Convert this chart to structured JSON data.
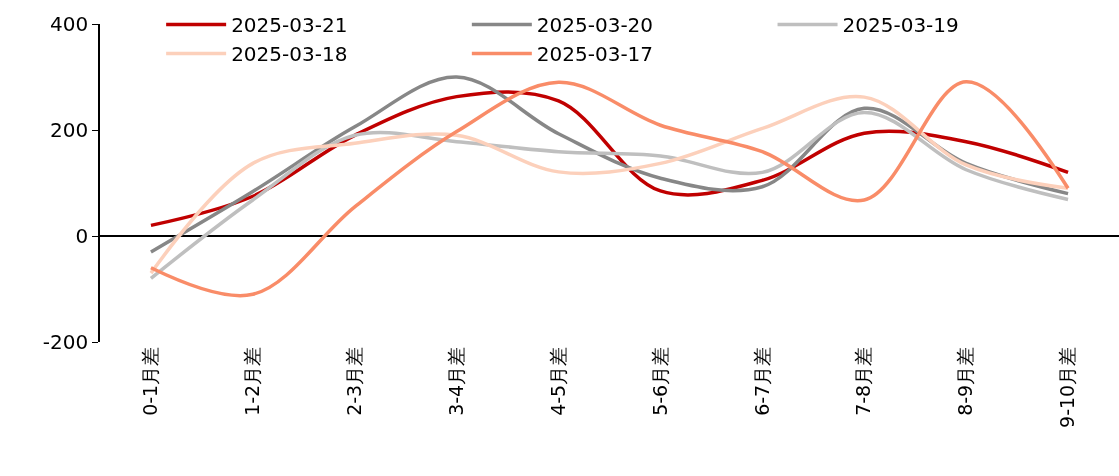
{
  "chart_data": {
    "type": "line",
    "categories": [
      "0-1月差",
      "1-2月差",
      "2-3月差",
      "3-4月差",
      "4-5月差",
      "5-6月差",
      "6-7月差",
      "7-8月差",
      "8-9月差",
      "9-10月差"
    ],
    "series": [
      {
        "name": "2025-03-21",
        "color": "#c00000",
        "values": [
          20,
          75,
          190,
          263,
          255,
          85,
          105,
          194,
          178,
          120
        ]
      },
      {
        "name": "2025-03-20",
        "color": "#878787",
        "values": [
          -30,
          84,
          206,
          300,
          193,
          109,
          93,
          241,
          137,
          80
        ]
      },
      {
        "name": "2025-03-19",
        "color": "#bfbfbf",
        "values": [
          -80,
          68,
          190,
          178,
          159,
          151,
          120,
          233,
          125,
          69
        ]
      },
      {
        "name": "2025-03-18",
        "color": "#fcd0bb",
        "values": [
          -70,
          137,
          175,
          190,
          121,
          137,
          203,
          262,
          134,
          90
        ]
      },
      {
        "name": "2025-03-17",
        "color": "#f98c68",
        "values": [
          -60,
          -110,
          55,
          197,
          290,
          209,
          159,
          68,
          291,
          90
        ]
      }
    ],
    "ylim": [
      -200,
      400
    ],
    "yticks": [
      -200,
      0,
      200,
      400
    ],
    "legend": "top",
    "marker": "none",
    "line_style": "solid"
  }
}
